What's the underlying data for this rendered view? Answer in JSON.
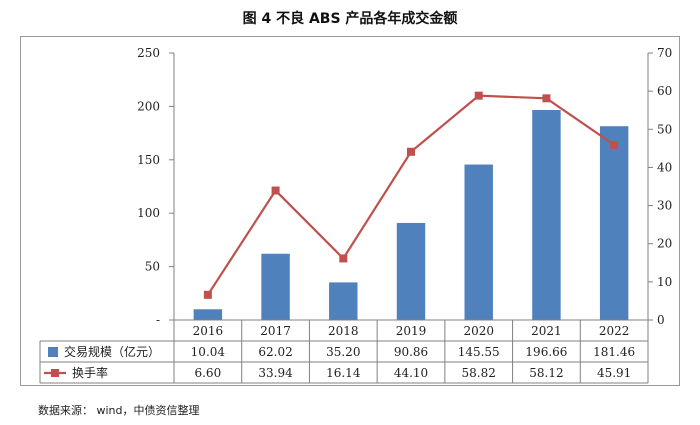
{
  "title": "图 4  不良 ABS 产品各年成交金额",
  "source": "数据来源： wind，中债资信整理",
  "chart_data": {
    "type": "bar",
    "categories": [
      "2016",
      "2017",
      "2018",
      "2019",
      "2020",
      "2021",
      "2022"
    ],
    "series": [
      {
        "name": "交易规模（亿元）",
        "type": "bar",
        "axis": "left",
        "color": "#4f81bd",
        "values": [
          10.04,
          62.02,
          35.2,
          90.86,
          145.55,
          196.66,
          181.46
        ],
        "labels": [
          "10.04",
          "62.02",
          "35.20",
          "90.86",
          "145.55",
          "196.66",
          "181.46"
        ]
      },
      {
        "name": "换手率",
        "type": "line",
        "axis": "right",
        "color": "#c0504d",
        "values": [
          6.6,
          33.94,
          16.14,
          44.1,
          58.82,
          58.12,
          45.91
        ],
        "labels": [
          "6.60",
          "33.94",
          "16.14",
          "44.10",
          "58.82",
          "58.12",
          "45.91"
        ]
      }
    ],
    "y_left": {
      "min": 0,
      "max": 250,
      "ticks": [
        0,
        50,
        100,
        150,
        200,
        250
      ],
      "tick_labels": [
        "-",
        "50",
        "100",
        "150",
        "200",
        "250"
      ]
    },
    "y_right": {
      "min": 0,
      "max": 70,
      "ticks": [
        0,
        10,
        20,
        30,
        40,
        50,
        60,
        70
      ],
      "tick_labels": [
        "0",
        "10",
        "20",
        "30",
        "40",
        "50",
        "60",
        "70"
      ]
    },
    "grid": false,
    "legend": "data-table"
  }
}
